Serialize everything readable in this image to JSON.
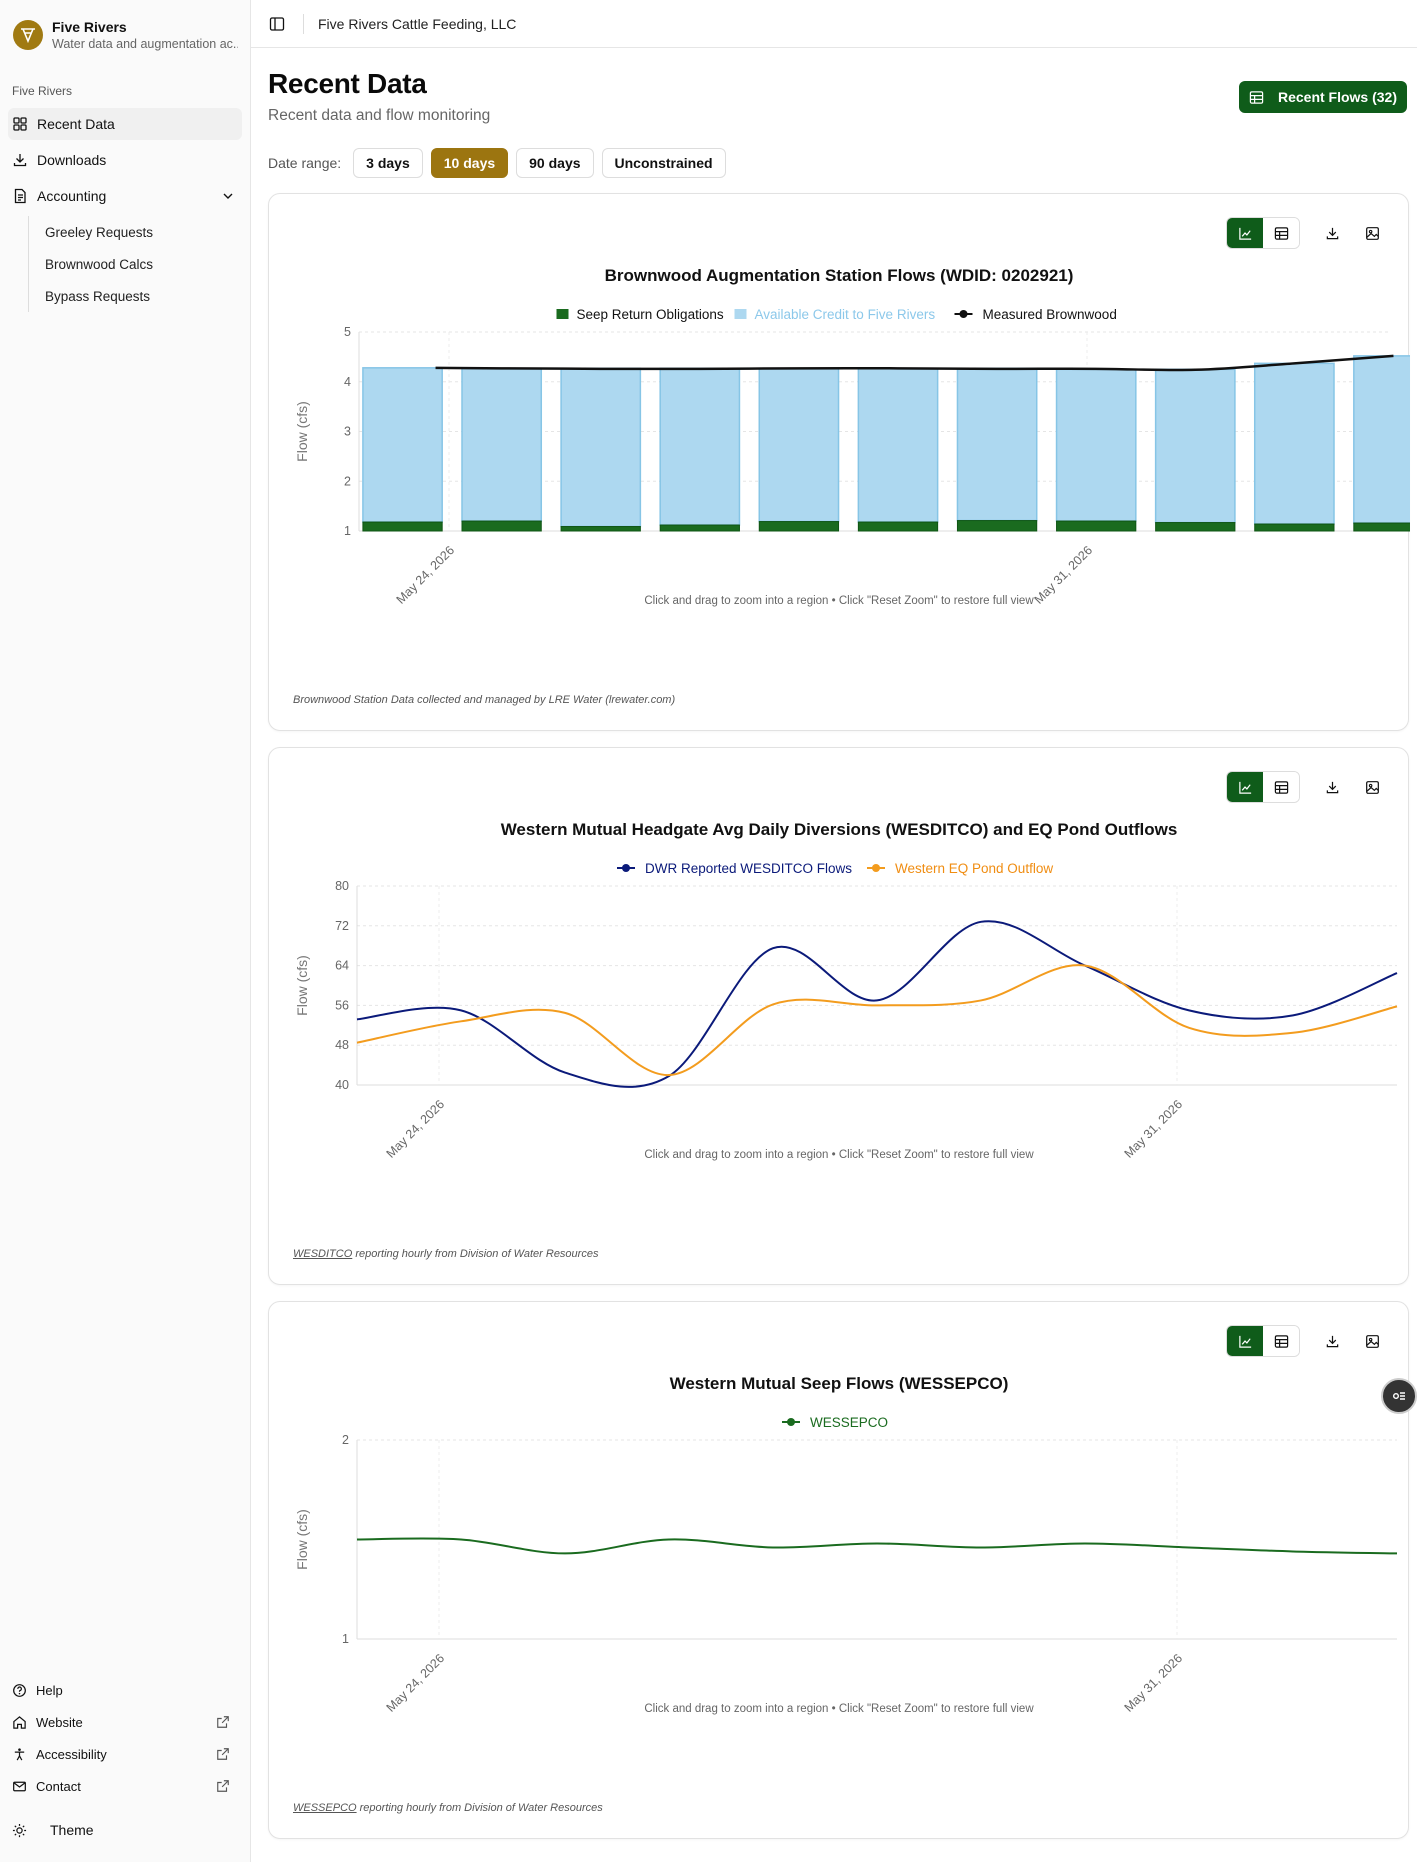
{
  "brand": {
    "name": "Five Rivers",
    "subtitle": "Water data and augmentation ac..."
  },
  "sidebar": {
    "group_label": "Five Rivers",
    "items": [
      {
        "label": "Recent Data",
        "icon": "grid-icon",
        "active": true
      },
      {
        "label": "Downloads",
        "icon": "download-icon"
      },
      {
        "label": "Accounting",
        "icon": "document-icon"
      }
    ],
    "sub_items": [
      "Greeley Requests",
      "Brownwood Calcs",
      "Bypass Requests"
    ],
    "footer": [
      {
        "label": "Help",
        "icon": "help-icon"
      },
      {
        "label": "Website",
        "icon": "home-icon"
      },
      {
        "label": "Accessibility",
        "icon": "accessibility-icon"
      },
      {
        "label": "Contact",
        "icon": "mail-icon"
      }
    ],
    "theme_label": "Theme"
  },
  "topbar": {
    "org": "Five Rivers Cattle Feeding, LLC"
  },
  "page": {
    "title": "Recent Data",
    "subtitle": "Recent data and flow monitoring",
    "flows_button": "Recent Flows (32)",
    "date_range_label": "Date range:",
    "ranges": [
      "3 days",
      "10 days",
      "90 days",
      "Unconstrained"
    ],
    "selected_range": "10 days"
  },
  "colors": {
    "green": "#1a6b1f",
    "light_blue": "#add8f0",
    "navy": "#0b1a7a",
    "orange": "#f39c1e",
    "gold": "#9c7510"
  },
  "chart_data": [
    {
      "type": "bar",
      "title": "Brownwood Augmentation Station Flows (WDID: 0202921)",
      "ylabel": "Flow (cfs)",
      "ylim": [
        1,
        5
      ],
      "yticks": [
        1,
        2,
        3,
        4,
        5
      ],
      "xtick_labels": [
        "May 24, 2026",
        "May 31, 2026"
      ],
      "hint": "Click and drag to zoom into a region • Click \"Reset Zoom\" to restore full view",
      "footnote": "Brownwood Station Data collected and managed by LRE Water (lrewater.com)",
      "legend": [
        "Seep Return Obligations",
        "Available Credit to Five Rivers",
        "Measured Brownwood"
      ],
      "series": [
        {
          "name": "Seep Return Obligations",
          "values": [
            1.18,
            1.2,
            1.09,
            1.12,
            1.19,
            1.18,
            1.21,
            1.2,
            1.17,
            1.14,
            1.16
          ]
        },
        {
          "name": "Available Credit to Five Rivers",
          "values": [
            4.28,
            4.27,
            4.27,
            4.27,
            4.27,
            4.27,
            4.27,
            4.25,
            4.25,
            4.37,
            4.52
          ]
        },
        {
          "name": "Measured Brownwood",
          "values": [
            4.28,
            4.27,
            4.26,
            4.26,
            4.27,
            4.27,
            4.26,
            4.26,
            4.24,
            4.37,
            4.52
          ]
        }
      ]
    },
    {
      "type": "line",
      "title": "Western Mutual Headgate Avg Daily Diversions (WESDITCO) and EQ Pond Outflows",
      "ylabel": "Flow (cfs)",
      "ylim": [
        40,
        80
      ],
      "yticks": [
        40,
        48,
        56,
        64,
        72,
        80
      ],
      "xtick_labels": [
        "May 24, 2026",
        "May 31, 2026"
      ],
      "hint": "Click and drag to zoom into a region • Click \"Reset Zoom\" to restore full view",
      "footnote_link": "WESDITCO",
      "footnote": " reporting hourly from Division of Water Resources",
      "legend": [
        "DWR Reported WESDITCO Flows",
        "Western EQ Pond Outflow"
      ],
      "series": [
        {
          "name": "DWR Reported WESDITCO Flows",
          "values": [
            53.2,
            55.0,
            42.5,
            41.8,
            67.5,
            57.0,
            72.8,
            64.0,
            55.0,
            54.0,
            62.5
          ]
        },
        {
          "name": "Western EQ Pond Outflow",
          "values": [
            48.5,
            52.8,
            54.5,
            42.0,
            56.2,
            56.0,
            57.0,
            64.0,
            51.5,
            50.5,
            55.8
          ]
        }
      ]
    },
    {
      "type": "line",
      "title": "Western Mutual Seep Flows (WESSEPCO)",
      "ylabel": "Flow (cfs)",
      "ylim": [
        1,
        2
      ],
      "yticks": [
        1,
        2
      ],
      "xtick_labels": [
        "May 24, 2026",
        "May 31, 2026"
      ],
      "hint": "Click and drag to zoom into a region • Click \"Reset Zoom\" to restore full view",
      "footnote_link": "WESSEPCO",
      "footnote": " reporting hourly from Division of Water Resources",
      "legend": [
        "WESSEPCO"
      ],
      "series": [
        {
          "name": "WESSEPCO",
          "values": [
            1.5,
            1.5,
            1.43,
            1.5,
            1.46,
            1.48,
            1.46,
            1.48,
            1.46,
            1.44,
            1.43
          ]
        }
      ]
    }
  ]
}
